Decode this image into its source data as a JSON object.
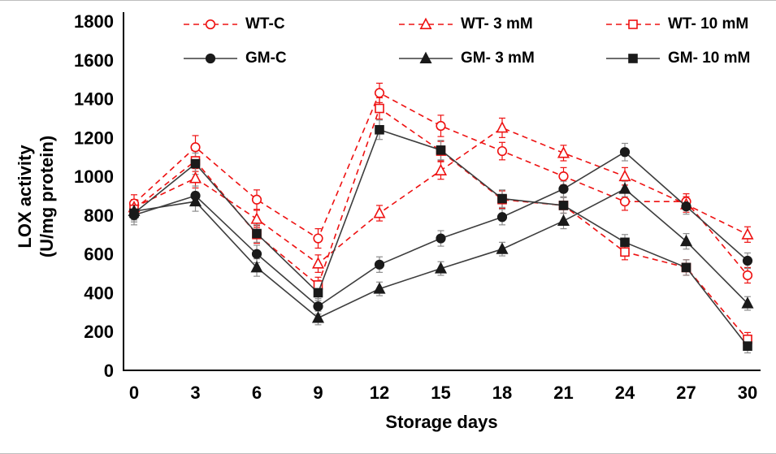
{
  "chart_data": {
    "type": "line",
    "title": "",
    "xlabel": "Storage days",
    "ylabel": "LOX activity (U/mg protein)",
    "ylabel_lines": [
      "LOX activity",
      "(U/mg protein)"
    ],
    "x": [
      0,
      3,
      6,
      9,
      12,
      15,
      18,
      21,
      24,
      27,
      30
    ],
    "xlim": [
      0,
      30
    ],
    "ylim": [
      0,
      1800
    ],
    "ytick_step": 200,
    "grid": false,
    "legend_position": "top-inside",
    "colors": {
      "wt_red": "#ee1111",
      "gm_black": "#1a1a1a",
      "gm_line": "#3d3d3d",
      "gm_errorbar": "#8c8c8c"
    },
    "series": [
      {
        "name": "WT-C",
        "group": "WT",
        "marker": "circle",
        "fill": "open",
        "line": "dashed",
        "color": "#ee1111",
        "values": [
          860,
          1150,
          880,
          680,
          1430,
          1260,
          1130,
          1000,
          870,
          870,
          490
        ],
        "errors": [
          45,
          60,
          50,
          50,
          50,
          55,
          45,
          45,
          45,
          40,
          40
        ]
      },
      {
        "name": "WT- 3 mM",
        "group": "WT",
        "marker": "triangle",
        "fill": "open",
        "line": "dashed",
        "color": "#ee1111",
        "values": [
          840,
          990,
          780,
          550,
          810,
          1030,
          1250,
          1120,
          1000,
          855,
          700
        ],
        "errors": [
          40,
          50,
          45,
          45,
          40,
          45,
          50,
          40,
          45,
          40,
          40
        ]
      },
      {
        "name": "WT- 10 mM",
        "group": "WT",
        "marker": "square",
        "fill": "open",
        "line": "dashed",
        "color": "#ee1111",
        "values": [
          830,
          1080,
          700,
          440,
          1350,
          1130,
          880,
          850,
          610,
          530,
          160
        ],
        "errors": [
          40,
          55,
          45,
          40,
          55,
          50,
          45,
          40,
          40,
          40,
          35
        ]
      },
      {
        "name": "GM-C",
        "group": "GM",
        "marker": "circle",
        "fill": "solid",
        "line": "solid",
        "color": "#1a1a1a",
        "values": [
          800,
          900,
          600,
          330,
          545,
          680,
          790,
          935,
          1125,
          845,
          565
        ],
        "errors": [
          50,
          50,
          45,
          40,
          40,
          40,
          40,
          40,
          45,
          40,
          40
        ]
      },
      {
        "name": "GM- 3 mM",
        "group": "GM",
        "marker": "triangle",
        "fill": "solid",
        "line": "solid",
        "color": "#1a1a1a",
        "values": [
          820,
          870,
          530,
          270,
          420,
          525,
          625,
          770,
          935,
          665,
          345
        ],
        "errors": [
          45,
          50,
          45,
          35,
          35,
          35,
          35,
          40,
          40,
          40,
          35
        ]
      },
      {
        "name": "GM- 10 mM",
        "group": "GM",
        "marker": "square",
        "fill": "solid",
        "line": "solid",
        "color": "#1a1a1a",
        "values": [
          810,
          1065,
          705,
          400,
          1240,
          1135,
          885,
          850,
          660,
          530,
          125
        ],
        "errors": [
          45,
          55,
          45,
          40,
          50,
          50,
          45,
          40,
          40,
          40,
          35
        ]
      }
    ]
  }
}
